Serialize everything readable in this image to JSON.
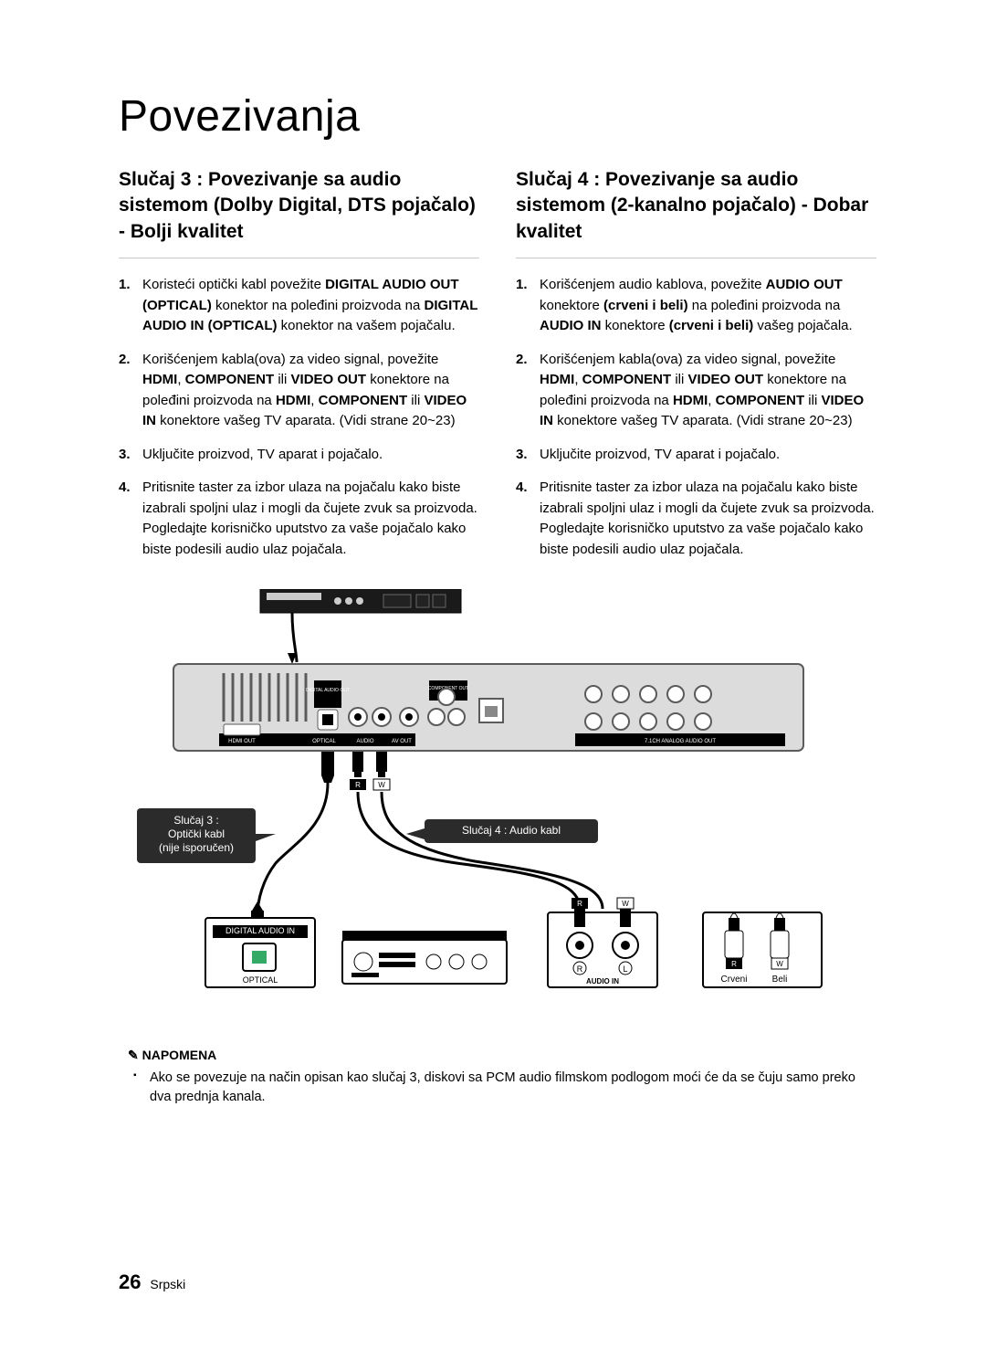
{
  "title": "Povezivanja",
  "left": {
    "heading": "Slučaj 3 : Povezivanje sa audio sistemom (Dolby Digital, DTS pojačalo) - Bolji kvalitet",
    "steps": [
      {
        "num": "1.",
        "html": "Koristeći optički kabl povežite <b>DIGITAL AUDIO OUT (OPTICAL)</b> konektor na poleđini proizvoda na <b>DIGITAL AUDIO IN (OPTICAL)</b> konektor na vašem pojačalu."
      },
      {
        "num": "2.",
        "html": "Korišćenjem kabla(ova) za video signal, povežite <b>HDMI</b>, <b>COMPONENT</b> ili <b>VIDEO OUT</b> konektore na poleđini proizvoda na <b>HDMI</b>, <b>COMPONENT</b> ili <b>VIDEO IN</b> konektore vašeg TV aparata. (Vidi strane 20~23)"
      },
      {
        "num": "3.",
        "html": "Uključite proizvod, TV aparat i pojačalo."
      },
      {
        "num": "4.",
        "html": "Pritisnite taster za izbor ulaza na pojačalu kako biste izabrali spoljni ulaz i mogli da čujete zvuk sa proizvoda. Pogledajte korisničko uputstvo za vaše pojačalo kako biste podesili audio ulaz pojačala."
      }
    ]
  },
  "right": {
    "heading": "Slučaj 4 : Povezivanje sa audio sistemom (2-kanalno pojačalo) - Dobar kvalitet",
    "steps": [
      {
        "num": "1.",
        "html": "Korišćenjem audio kablova, povežite <b>AUDIO OUT</b> konektore <b>(crveni i beli)</b> na poleđini proizvoda na <b>AUDIO IN</b> konektore <b>(crveni i beli)</b> vašeg pojačala."
      },
      {
        "num": "2.",
        "html": "Korišćenjem kabla(ova) za video signal, povežite <b>HDMI</b>, <b>COMPONENT</b> ili <b>VIDEO OUT</b> konektore na poleđini proizvoda na <b>HDMI</b>, <b>COMPONENT</b> ili <b>VIDEO IN</b> konektore vašeg TV aparata. (Vidi strane 20~23)"
      },
      {
        "num": "3.",
        "html": "Uključite proizvod, TV aparat i pojačalo."
      },
      {
        "num": "4.",
        "html": "Pritisnite taster za izbor ulaza na pojačalu kako biste izabrali spoljni ulaz i mogli da čujete zvuk sa proizvoda. Pogledajte korisničko uputstvo za vaše pojačalo kako biste podesili audio ulaz pojačala."
      }
    ]
  },
  "diagram": {
    "case3_label": "Slučaj 3 :\nOptički kabl\n(nije isporučen)",
    "case4_label": "Slučaj 4 : Audio kabl",
    "digital_audio_in": "DIGITAL AUDIO IN",
    "optical": "OPTICAL",
    "audio_in": "AUDIO IN",
    "crveni": "Crveni",
    "beli": "Beli",
    "r": "R",
    "w": "W",
    "r2": "R",
    "l2": "L",
    "panel_labels": {
      "hdmi_out": "HDMI OUT",
      "optical": "OPTICAL",
      "audio": "AUDIO",
      "av_out": "AV OUT",
      "component": "COMPONENT OUT",
      "dig_out": "DIGITAL AUDIO OUT",
      "analog": "7.1CH ANALOG AUDIO OUT"
    },
    "colors": {
      "panel_bg": "#d9d9d9",
      "panel_stroke": "#5b5b5b",
      "dark": "#000000",
      "red_plug": "#d33",
      "white_plug": "#fff",
      "cable": "#000000",
      "callout_bg": "#2b2b2b"
    }
  },
  "note": {
    "heading": "NAPOMENA",
    "body": "Ako se povezuje na način opisan kao slučaj 3, diskovi sa PCM audio filmskom podlogom moći će da se čuju samo preko dva prednja kanala."
  },
  "footer": {
    "page": "26",
    "lang": "Srpski"
  }
}
